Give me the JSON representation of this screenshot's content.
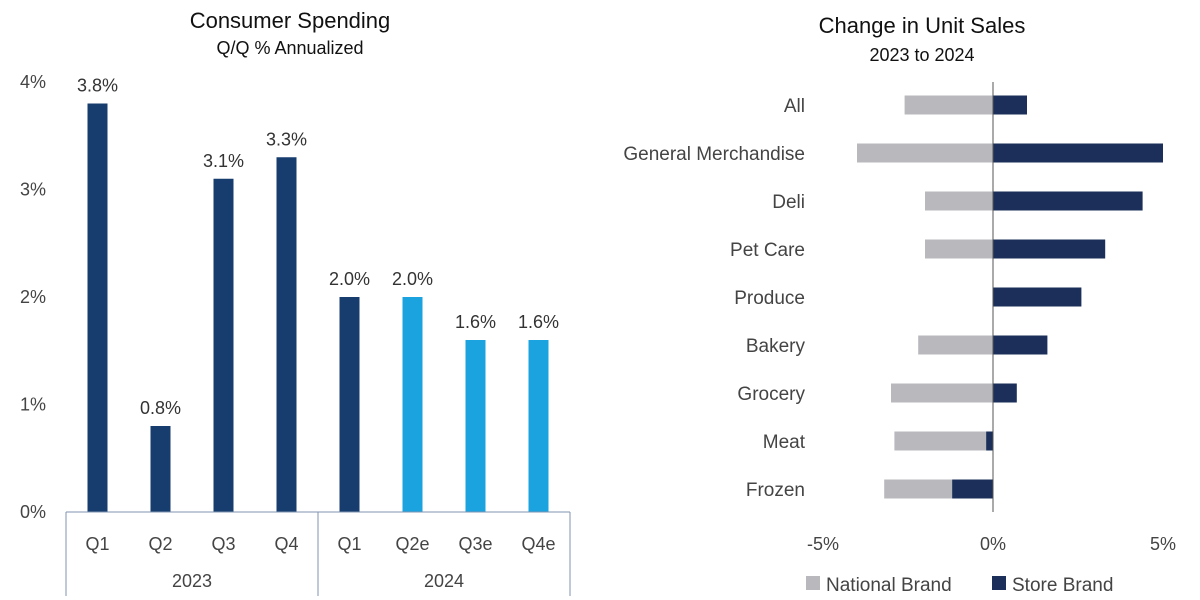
{
  "chart_data": [
    {
      "type": "bar",
      "title": "Consumer Spending",
      "subtitle": "Q/Q % Annualized",
      "categories": [
        "Q1",
        "Q2",
        "Q3",
        "Q4",
        "Q1",
        "Q2e",
        "Q3e",
        "Q4e"
      ],
      "groups": [
        {
          "label": "2023",
          "start": 0,
          "end": 3
        },
        {
          "label": "2024",
          "start": 4,
          "end": 7
        }
      ],
      "values": [
        3.8,
        0.8,
        3.1,
        3.3,
        2.0,
        2.0,
        1.6,
        1.6
      ],
      "value_labels": [
        "3.8%",
        "0.8%",
        "3.1%",
        "3.3%",
        "2.0%",
        "2.0%",
        "1.6%",
        "1.6%"
      ],
      "estimate": [
        false,
        false,
        false,
        false,
        false,
        true,
        true,
        true
      ],
      "ylim": [
        0,
        4
      ],
      "yticks": [
        0,
        1,
        2,
        3,
        4
      ],
      "ytick_labels": [
        "0%",
        "1%",
        "2%",
        "3%",
        "4%"
      ],
      "colors": {
        "actual": "#173c6e",
        "estimate": "#1aa3df"
      }
    },
    {
      "type": "bar",
      "orientation": "horizontal",
      "title": "Change in  Unit Sales",
      "subtitle": "2023 to 2024",
      "categories": [
        "All",
        "General Merchandise",
        "Deli",
        "Pet Care",
        "Produce",
        "Bakery",
        "Grocery",
        "Meat",
        "Frozen"
      ],
      "series": [
        {
          "name": "National Brand",
          "color": "#b9b8bd",
          "values": [
            -2.6,
            -4.0,
            -2.0,
            -2.0,
            0.0,
            -2.2,
            -3.0,
            -2.9,
            -3.2
          ]
        },
        {
          "name": "Store Brand",
          "color": "#1b2f5a",
          "values": [
            1.0,
            5.0,
            4.4,
            3.3,
            2.6,
            1.6,
            0.7,
            -0.2,
            -1.2
          ]
        }
      ],
      "xlim": [
        -5,
        5
      ],
      "xticks": [
        -5,
        0,
        5
      ],
      "xtick_labels": [
        "-5%",
        "0%",
        "5%"
      ],
      "legend": "bottom"
    }
  ]
}
